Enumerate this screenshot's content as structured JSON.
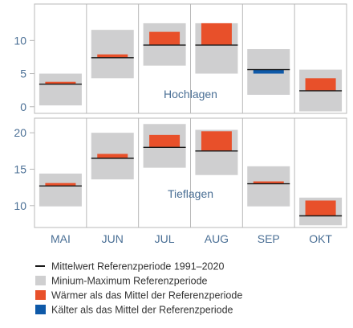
{
  "chart_data": {
    "type": "range-bar",
    "months": [
      "MAI",
      "JUN",
      "JUL",
      "AUG",
      "SEP",
      "OKT"
    ],
    "colors": {
      "range": "#cfcfd0",
      "warmer": "#e8502a",
      "colder": "#0e59a8",
      "mean_line": "#1a1a1a",
      "axis_text": "#4a6f95",
      "frame": "#b8b8b8"
    },
    "panels": [
      {
        "label": "Hochlagen",
        "ylim": [
          -1,
          15.5
        ],
        "yticks": [
          0,
          5,
          10
        ],
        "months": [
          {
            "min": 0.2,
            "max": 5.0,
            "mean": 3.4,
            "current": 3.4
          },
          {
            "min": 4.3,
            "max": 11.6,
            "mean": 7.4,
            "current": 7.9
          },
          {
            "min": 6.2,
            "max": 12.6,
            "mean": 9.3,
            "current": 11.3
          },
          {
            "min": 5.0,
            "max": 12.6,
            "mean": 9.3,
            "current": 12.6
          },
          {
            "min": 1.8,
            "max": 8.7,
            "mean": 5.6,
            "current": 5.0
          },
          {
            "min": -0.7,
            "max": 5.6,
            "mean": 2.4,
            "current": 4.3
          }
        ]
      },
      {
        "label": "Tieflagen",
        "ylim": [
          7.0,
          22.0
        ],
        "yticks": [
          10,
          15,
          20
        ],
        "months": [
          {
            "min": 9.9,
            "max": 14.4,
            "mean": 12.7,
            "current": 13.1
          },
          {
            "min": 13.6,
            "max": 20.0,
            "mean": 16.5,
            "current": 17.1
          },
          {
            "min": 15.2,
            "max": 21.2,
            "mean": 18.0,
            "current": 19.7
          },
          {
            "min": 14.2,
            "max": 20.4,
            "mean": 17.5,
            "current": 20.2
          },
          {
            "min": 9.9,
            "max": 15.4,
            "mean": 13.0,
            "current": 13.3
          },
          {
            "min": 7.3,
            "max": 11.1,
            "mean": 8.6,
            "current": 10.7
          }
        ]
      }
    ],
    "legend": [
      {
        "marker": "line",
        "color": "#1a1a1a",
        "label": "Mittelwert Referenzperiode 1991–2020"
      },
      {
        "marker": "square",
        "color": "#cfcfd0",
        "label": "Minium-Maximum Referenzperiode"
      },
      {
        "marker": "square",
        "color": "#e8502a",
        "label": "Wärmer als das Mittel der Referenzperiode"
      },
      {
        "marker": "square",
        "color": "#0e59a8",
        "label": "Kälter als das Mittel der Referenzperiode"
      }
    ]
  }
}
